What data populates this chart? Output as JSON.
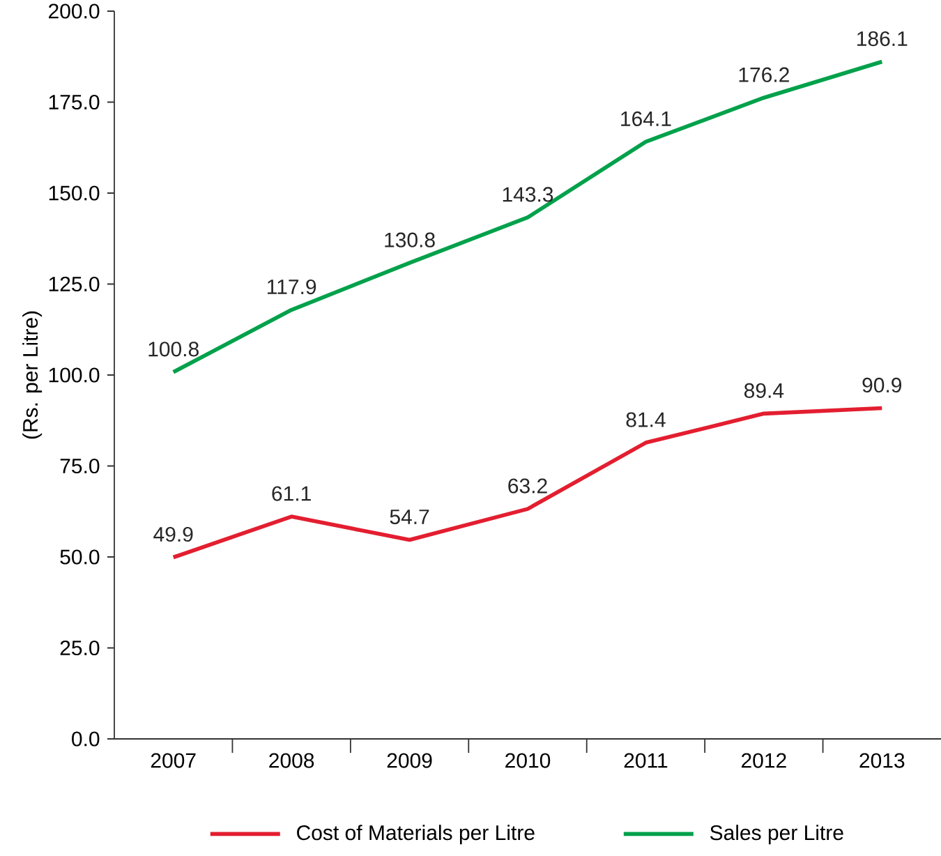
{
  "chart_data": {
    "type": "line",
    "ylabel": "(Rs. per Litre)",
    "categories": [
      "2007",
      "2008",
      "2009",
      "2010",
      "2011",
      "2012",
      "2013"
    ],
    "series": [
      {
        "name": "Cost of Materials per Litre",
        "color": "#e31e30",
        "values": [
          49.9,
          61.1,
          54.7,
          63.2,
          81.4,
          89.4,
          90.9
        ]
      },
      {
        "name": "Sales per Litre",
        "color": "#00a14b",
        "values": [
          100.8,
          117.9,
          130.8,
          143.3,
          164.1,
          176.2,
          186.1
        ]
      }
    ],
    "ylim": [
      0,
      200
    ],
    "yticks": [
      {
        "value": 0,
        "label": "0.0"
      },
      {
        "value": 25,
        "label": "25.0"
      },
      {
        "value": 50,
        "label": "50.0"
      },
      {
        "value": 75,
        "label": "75.0"
      },
      {
        "value": 100,
        "label": "100.0"
      },
      {
        "value": 125,
        "label": "125.0"
      },
      {
        "value": 150,
        "label": "150.0"
      },
      {
        "value": 175,
        "label": "175.0"
      },
      {
        "value": 200,
        "label": "200.0"
      }
    ],
    "data_labels": true,
    "legend": "bottom",
    "grid": false,
    "marker": "none",
    "line_style": "solid"
  }
}
